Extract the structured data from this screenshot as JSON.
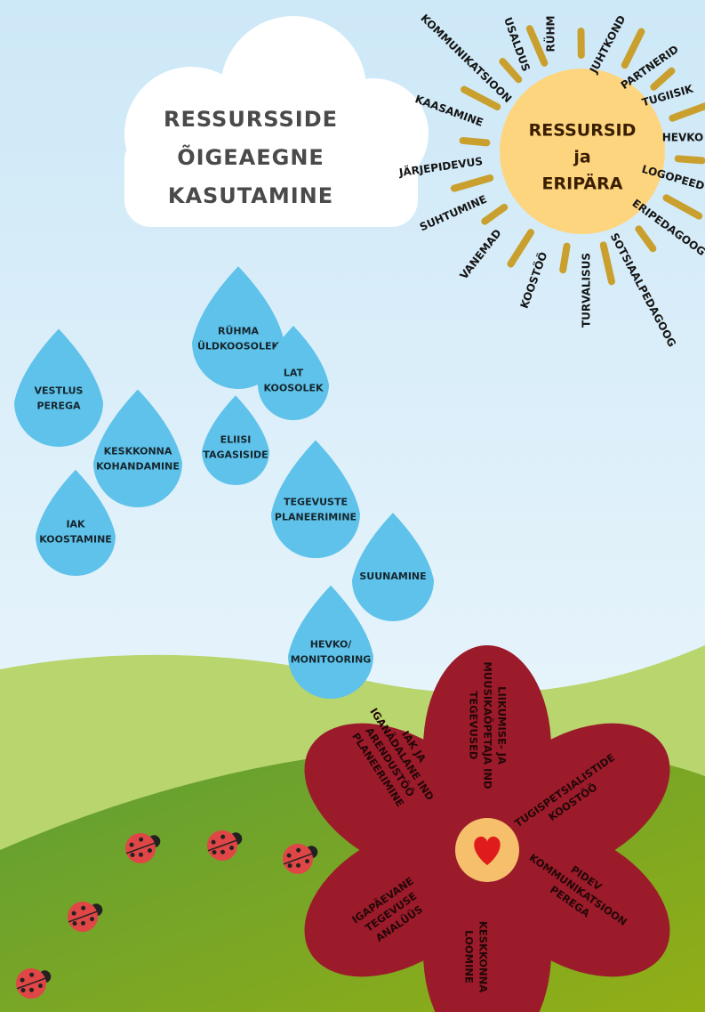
{
  "cloud": {
    "lines": [
      "RESSURSSIDE",
      "ÕIGEAEGNE",
      "KASUTAMINE"
    ]
  },
  "sun": {
    "lines": [
      "RESSURSID",
      "ja",
      "ERIPÄRA"
    ],
    "rays": [
      "KOMMUNIKATSIOON",
      "USALDUS",
      "RÜHM",
      "JUHTKOND",
      "PARTNERID",
      "TUGIISIK",
      "HEVKO",
      "LOGOPEED",
      "ERIPEDAGOOG",
      "SOTSIAALPEDAGOOG",
      "TURVALISUS",
      "KOOSTÖÖ",
      "VANEMAD",
      "SUHTUMINE",
      "JÄRJEPIDEVUS",
      "KAASAMINE"
    ]
  },
  "drops": [
    {
      "lines": [
        "RÜHMA",
        "ÜLDKOOSOLEK"
      ]
    },
    {
      "lines": [
        "VESTLUS",
        "PEREGA"
      ]
    },
    {
      "lines": [
        "LAT",
        "KOOSOLEK"
      ]
    },
    {
      "lines": [
        "KESKKONNA",
        "KOHANDAMINE"
      ]
    },
    {
      "lines": [
        "ELIISI",
        "TAGASISIDE"
      ]
    },
    {
      "lines": [
        "TEGEVUSTE",
        "PLANEERIMINE"
      ]
    },
    {
      "lines": [
        "IAK",
        "KOOSTAMINE"
      ]
    },
    {
      "lines": [
        "SUUNAMINE"
      ]
    },
    {
      "lines": [
        "HEVKO/",
        "MONITOORING"
      ]
    }
  ],
  "flower": {
    "petals": [
      {
        "lines": [
          "LIIKUMISE- JA",
          "MUUSIKAÕPETAJA IND",
          "TEGEVUSED"
        ]
      },
      {
        "lines": [
          "TUGISPETSIALISTIDE",
          "KOOSTÖÖ"
        ]
      },
      {
        "lines": [
          "PIDEV",
          "KOMMUNIKATSIOON",
          "PEREGA"
        ]
      },
      {
        "lines": [
          "KESKKONNA",
          "LOOMINE"
        ]
      },
      {
        "lines": [
          "IGAPÄEVANE",
          "TEGEVUSE",
          "ANALÜÜS"
        ]
      },
      {
        "lines": [
          "IAK JA",
          "IGANÄDALANE IND",
          "ARENDUSTÖÖ",
          "PLANEERIMINE"
        ]
      }
    ]
  }
}
